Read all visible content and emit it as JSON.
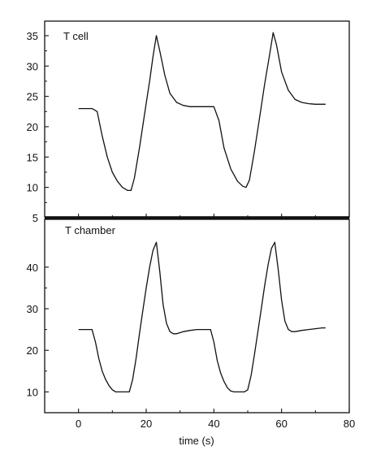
{
  "chart_data": [
    {
      "type": "line",
      "label": "T cell",
      "xlim": [
        -10,
        80
      ],
      "ylim": [
        5,
        37
      ],
      "yticks": [
        5,
        10,
        15,
        20,
        25,
        30,
        35
      ],
      "series": [
        {
          "x": [
            0,
            2,
            4,
            5.5,
            7,
            8.5,
            10,
            11.5,
            13,
            14.5,
            15.5,
            16.5,
            18,
            19.5,
            21,
            22,
            23,
            24,
            25.5,
            27,
            29,
            31,
            33,
            35,
            37,
            38.5,
            40,
            41.5,
            43,
            45,
            47,
            48.5,
            49.5,
            50.5,
            52,
            53.5,
            55,
            56.5,
            57.5,
            58.5,
            60,
            62,
            64,
            66,
            68,
            70,
            72,
            73
          ],
          "y": [
            23,
            23,
            23,
            22.5,
            18.5,
            15,
            12.5,
            11,
            10,
            9.5,
            9.5,
            11.5,
            16.5,
            22,
            27.5,
            31.5,
            35,
            32.5,
            28.5,
            25.5,
            24,
            23.5,
            23.3,
            23.3,
            23.3,
            23.3,
            23.3,
            21,
            16.5,
            13,
            11,
            10.2,
            10,
            11.2,
            16,
            21.5,
            27,
            32,
            35.5,
            33.5,
            29,
            26,
            24.5,
            24,
            23.8,
            23.7,
            23.7,
            23.7
          ]
        }
      ]
    },
    {
      "type": "line",
      "label": "T chamber",
      "xlim": [
        -10,
        80
      ],
      "ylim": [
        5,
        52
      ],
      "yticks": [
        10,
        20,
        30,
        40
      ],
      "xticks": [
        0,
        20,
        40,
        60,
        80
      ],
      "xlabel": "time (s)",
      "series": [
        {
          "x": [
            0,
            2,
            4,
            5,
            6,
            7,
            8,
            9,
            10,
            11,
            12,
            13,
            14,
            15,
            16,
            17,
            18,
            19,
            20,
            21,
            22,
            23,
            24,
            25,
            26,
            27,
            28,
            29,
            31,
            33,
            35,
            37,
            39,
            40,
            41,
            42,
            43,
            44,
            45,
            46,
            47,
            48,
            49,
            50,
            51,
            52,
            53,
            54,
            55,
            56,
            57,
            58,
            59,
            60,
            61,
            62,
            63,
            64,
            66,
            68,
            70,
            72,
            73
          ],
          "y": [
            25,
            25,
            25,
            22,
            18,
            15,
            13,
            11.5,
            10.5,
            10,
            10,
            10,
            10,
            10,
            13,
            18,
            24,
            29.5,
            35,
            40,
            44,
            46,
            39,
            31,
            26.5,
            24.5,
            24,
            24,
            24.5,
            24.8,
            25,
            25,
            25,
            22,
            17.5,
            14.5,
            12.5,
            11,
            10.2,
            10,
            10,
            10,
            10,
            10.5,
            14,
            19,
            24.5,
            30,
            35.5,
            40.5,
            44.5,
            46,
            39.5,
            32,
            27,
            25,
            24.5,
            24.5,
            24.8,
            25,
            25.2,
            25.4,
            25.4
          ]
        }
      ]
    }
  ]
}
